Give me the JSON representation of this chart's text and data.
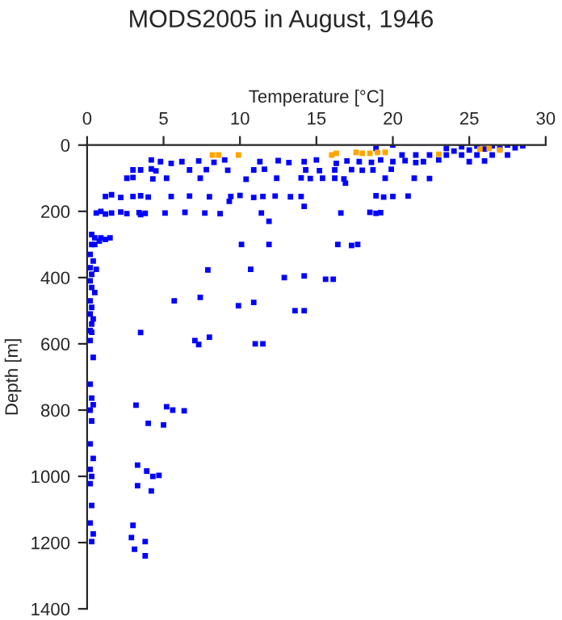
{
  "chart_data": {
    "type": "scatter",
    "title": "MODS2005 in August, 1946",
    "xlabel": "Temperature [°C]",
    "ylabel": "Depth [m]",
    "xlim": [
      0,
      30
    ],
    "xticks": [
      0,
      5,
      10,
      15,
      20,
      25,
      30
    ],
    "ylim": [
      1400,
      0
    ],
    "yticks": [
      0,
      200,
      400,
      600,
      800,
      1000,
      1200,
      1400
    ],
    "marker": "square",
    "grid": false,
    "legend": false,
    "series": [
      {
        "color": "#0000ff",
        "x": [
          24.5,
          25.5,
          26.5,
          27.5,
          28.5,
          28,
          27,
          26,
          25,
          24,
          23.5,
          20,
          18.9,
          20.6,
          21.5,
          22.4,
          23.5,
          24.5,
          25.5,
          26.5,
          27.5,
          4.2,
          4.8,
          5.5,
          6.2,
          7.3,
          8.3,
          9,
          11.3,
          12.5,
          13.2,
          14.2,
          15,
          16.3,
          17,
          17.8,
          18.6,
          19.2,
          20,
          20.8,
          21.5,
          22,
          23,
          25,
          26,
          3,
          3.5,
          4.2,
          4.5,
          6.7,
          7.8,
          9.2,
          10.9,
          11.6,
          14.3,
          15.2,
          16.2,
          17.3,
          18,
          18.7,
          19.9,
          2.6,
          3,
          4.3,
          5.2,
          7.4,
          10.4,
          12.4,
          14,
          14.6,
          15.4,
          16.2,
          16.8,
          19.5,
          21.4,
          22.4,
          16.9,
          1.2,
          1.6,
          2.2,
          3,
          3.5,
          4,
          5.5,
          6.7,
          8,
          9.4,
          10,
          10.9,
          11.5,
          12.3,
          13.3,
          14,
          18.9,
          19.4,
          20,
          21,
          9.3,
          0.6,
          0.9,
          1.2,
          1.6,
          2.2,
          2.6,
          3.4,
          3.8,
          5.1,
          6.4,
          7.7,
          8.7,
          11.4,
          16.6,
          18.5,
          18.9,
          19.2,
          14.2,
          3.5,
          11.9,
          10.1,
          11.9,
          16.4,
          17.3,
          17.7,
          0.3,
          0.5,
          0.9,
          1.2,
          1.5,
          0.3,
          0.5,
          0.8,
          7.9,
          10.7,
          12.9,
          14.2,
          15.6,
          16.1,
          5.7,
          7.4,
          9.9,
          10.9,
          13.6,
          14.2,
          0.2,
          0.4,
          0.2,
          0.6,
          0.3,
          0.2,
          0.3,
          0.5,
          0.2,
          0.3,
          0.2,
          0.4,
          0.3,
          0.2,
          3.5,
          7.05,
          7.3,
          8,
          11,
          11.5,
          3.2,
          5.2,
          5.6,
          6.35,
          4,
          5,
          3.3,
          3.9,
          4.3,
          4.7,
          3.3,
          4.2,
          3,
          2.9,
          3.1,
          3.8,
          3.8,
          0.3,
          0.2,
          0.4,
          0.2,
          0.3,
          0.4,
          0.2,
          0.3,
          0.2,
          0.4,
          0.2,
          0.3,
          0.2,
          0.3,
          0.2,
          0.4,
          0.3
        ],
        "values": [
          5,
          3,
          2,
          0,
          2,
          8,
          10,
          12,
          15,
          18,
          10,
          0,
          10,
          30,
          30,
          30,
          30,
          30,
          30,
          30,
          30,
          45,
          50,
          55,
          50,
          48,
          52,
          45,
          50,
          47,
          53,
          50,
          45,
          55,
          48,
          50,
          52,
          45,
          50,
          47,
          53,
          50,
          45,
          50,
          48,
          75,
          75,
          72,
          78,
          75,
          74,
          76,
          75,
          73,
          75,
          77,
          75,
          74,
          76,
          75,
          73,
          100,
          98,
          102,
          100,
          100,
          103,
          100,
          99,
          101,
          100,
          100,
          102,
          100,
          100,
          101,
          115,
          155,
          150,
          158,
          155,
          153,
          157,
          155,
          154,
          156,
          155,
          152,
          158,
          155,
          154,
          156,
          155,
          153,
          157,
          155,
          154,
          170,
          205,
          200,
          208,
          205,
          202,
          207,
          204,
          206,
          205,
          203,
          205,
          207,
          205,
          205,
          203,
          206,
          204,
          185,
          210,
          230,
          300,
          300,
          300,
          303,
          300,
          270,
          280,
          280,
          285,
          280,
          300,
          300,
          290,
          377,
          375,
          400,
          395,
          405,
          405,
          470,
          460,
          485,
          475,
          500,
          500,
          330,
          350,
          370,
          375,
          390,
          410,
          430,
          445,
          470,
          490,
          510,
          525,
          540,
          560,
          566,
          590,
          602,
          580,
          600,
          600,
          785,
          790,
          800,
          802,
          840,
          845,
          966,
          984,
          1000,
          997,
          1028,
          1044,
          1148,
          1185,
          1220,
          1197,
          1240,
          565,
          590,
          641,
          722,
          764,
          784,
          800,
          833,
          902,
          946,
          979,
          1000,
          1022,
          1088,
          1141,
          1174,
          1197
        ]
      },
      {
        "color": "#ffa500",
        "x": [
          8.2,
          8.6,
          9.9,
          16,
          16.3,
          17.6,
          18,
          18.5,
          19,
          19.5,
          23,
          25.7,
          26.3,
          27
        ],
        "values": [
          30,
          30,
          30,
          30,
          25,
          22,
          25,
          25,
          22,
          22,
          28,
          12,
          10,
          15
        ]
      }
    ]
  }
}
